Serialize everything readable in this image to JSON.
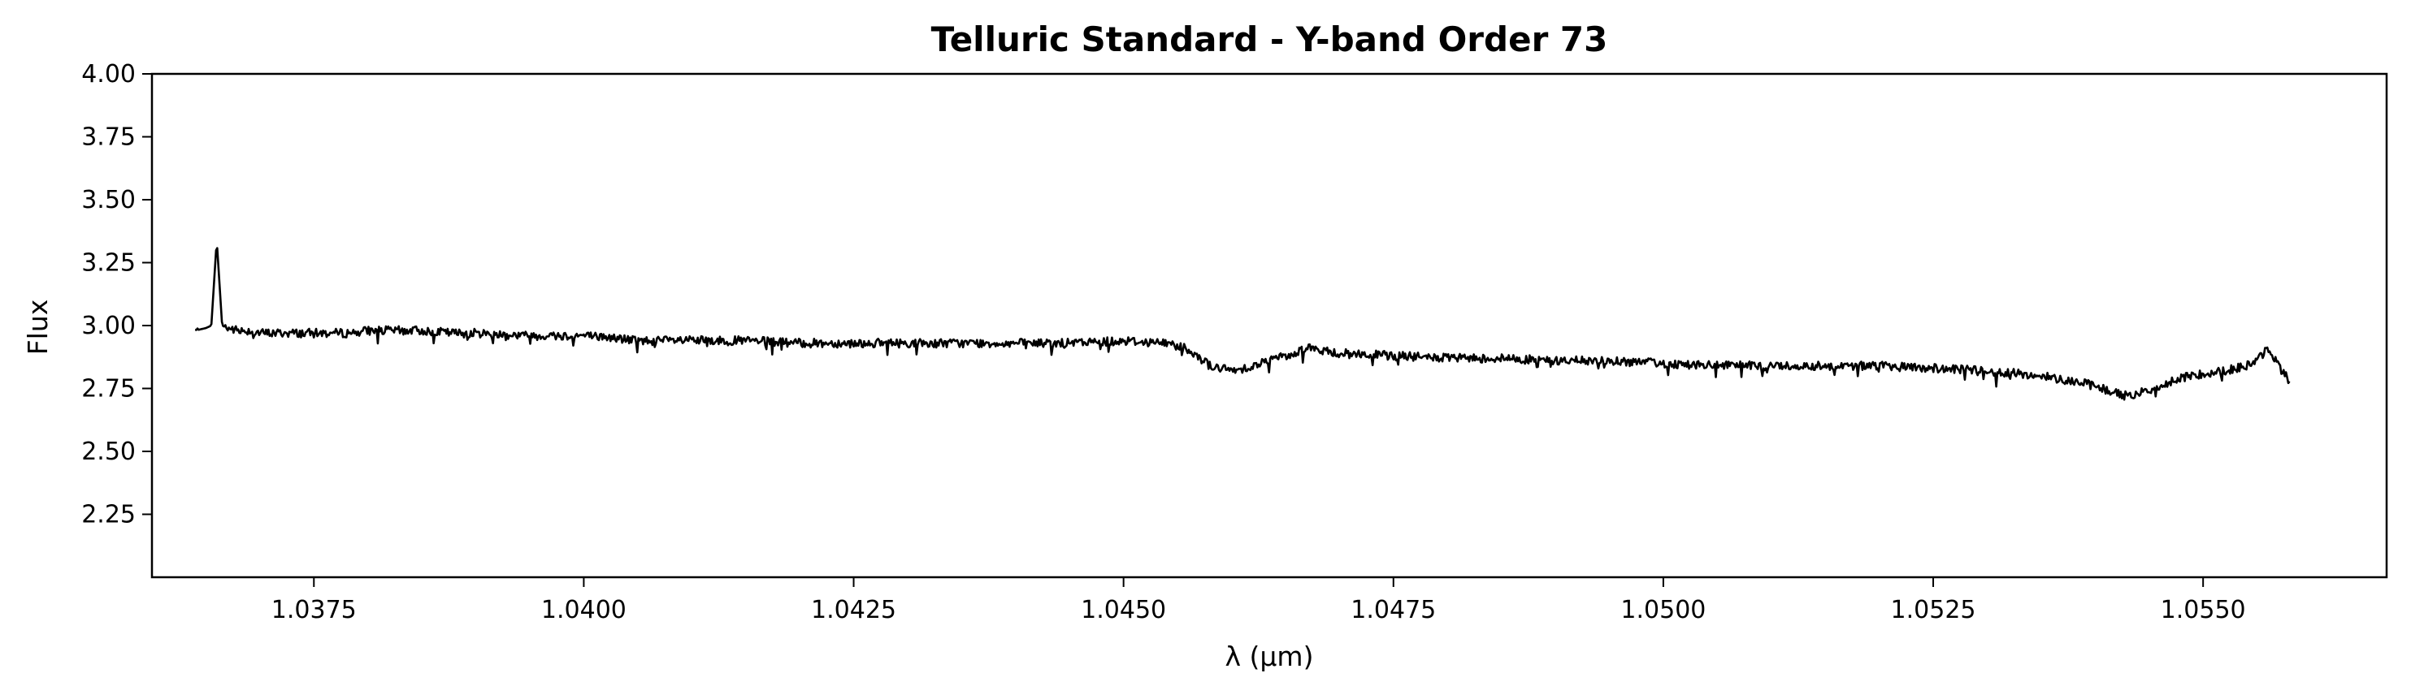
{
  "chart_data": {
    "type": "line",
    "title": "Telluric Standard - Y-band Order 73",
    "xlabel": "λ (μm)",
    "ylabel": "Flux",
    "xlim": [
      1.036,
      1.0567
    ],
    "ylim": [
      2.0,
      4.0
    ],
    "grid": false,
    "legend": "none",
    "line_color": "#000000",
    "xticks": [
      {
        "value": 1.0375,
        "label": "1.0375"
      },
      {
        "value": 1.04,
        "label": "1.0400"
      },
      {
        "value": 1.0425,
        "label": "1.0425"
      },
      {
        "value": 1.045,
        "label": "1.0450"
      },
      {
        "value": 1.0475,
        "label": "1.0475"
      },
      {
        "value": 1.05,
        "label": "1.0500"
      },
      {
        "value": 1.0525,
        "label": "1.0525"
      },
      {
        "value": 1.055,
        "label": "1.0550"
      }
    ],
    "yticks": [
      {
        "value": 2.25,
        "label": "2.25"
      },
      {
        "value": 2.5,
        "label": "2.50"
      },
      {
        "value": 2.75,
        "label": "2.75"
      },
      {
        "value": 3.0,
        "label": "3.00"
      },
      {
        "value": 3.25,
        "label": "3.25"
      },
      {
        "value": 3.5,
        "label": "3.50"
      },
      {
        "value": 3.75,
        "label": "3.75"
      },
      {
        "value": 4.0,
        "label": "4.00"
      }
    ],
    "series": [
      {
        "x": [
          1.0364,
          1.0365,
          1.03655,
          1.0366,
          1.03665,
          1.0367,
          1.0368,
          1.0369,
          1.037,
          1.0372,
          1.0374,
          1.0376,
          1.0378,
          1.038,
          1.0382,
          1.0385,
          1.0388,
          1.039,
          1.0395,
          1.04,
          1.0403,
          1.0405,
          1.0408,
          1.041,
          1.0415,
          1.042,
          1.0425,
          1.043,
          1.0435,
          1.044,
          1.0445,
          1.045,
          1.0454,
          1.0456,
          1.0458,
          1.046,
          1.0462,
          1.0464,
          1.0466,
          1.0467,
          1.0468,
          1.047,
          1.0475,
          1.048,
          1.0485,
          1.049,
          1.0495,
          1.05,
          1.0505,
          1.051,
          1.0515,
          1.052,
          1.0525,
          1.053,
          1.0535,
          1.0538,
          1.054,
          1.0542,
          1.0543,
          1.0544,
          1.0546,
          1.0548,
          1.055,
          1.0552,
          1.0554,
          1.0555,
          1.0556,
          1.0557,
          1.0558
        ],
        "y": [
          2.98,
          2.99,
          3.0,
          3.34,
          3.0,
          2.99,
          2.98,
          2.98,
          2.97,
          2.97,
          2.97,
          2.97,
          2.97,
          2.98,
          2.98,
          2.98,
          2.97,
          2.97,
          2.96,
          2.96,
          2.95,
          2.94,
          2.94,
          2.94,
          2.94,
          2.93,
          2.93,
          2.93,
          2.93,
          2.93,
          2.93,
          2.94,
          2.93,
          2.91,
          2.84,
          2.82,
          2.84,
          2.87,
          2.89,
          2.92,
          2.9,
          2.89,
          2.88,
          2.87,
          2.87,
          2.86,
          2.86,
          2.85,
          2.84,
          2.84,
          2.84,
          2.84,
          2.83,
          2.82,
          2.8,
          2.78,
          2.76,
          2.73,
          2.72,
          2.73,
          2.76,
          2.79,
          2.81,
          2.82,
          2.84,
          2.86,
          2.91,
          2.84,
          2.78
        ]
      }
    ]
  }
}
